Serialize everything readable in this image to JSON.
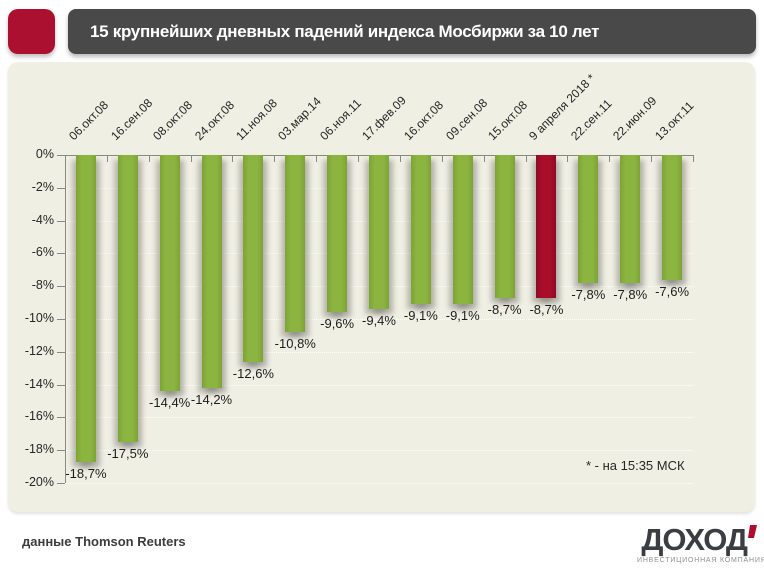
{
  "header": {
    "title": "15 крупнейших дневных падений индекса Мосбиржи за 10 лет",
    "accent_color": "#AC1030",
    "bar_color": "#494949"
  },
  "chart_data": {
    "type": "bar",
    "title": "15 крупнейших дневных падений индекса Мосбиржи за 10 лет",
    "categories": [
      "06.окт.08",
      "16.сен.08",
      "08.окт.08",
      "24.окт.08",
      "11.ноя.08",
      "03.мар.14",
      "06.ноя.11",
      "17.фев.09",
      "16.окт.08",
      "09.сен.08",
      "15.окт.08",
      "9 апреля 2018 *",
      "22.сен.11",
      "22.июн.09",
      "13.окт.11"
    ],
    "values": [
      -18.7,
      -17.5,
      -14.4,
      -14.2,
      -12.6,
      -10.8,
      -9.6,
      -9.4,
      -9.1,
      -9.1,
      -8.7,
      -8.7,
      -7.8,
      -7.8,
      -7.6
    ],
    "value_labels": [
      "-18,7%",
      "-17,5%",
      "-14,4%",
      "-14,2%",
      "-12,6%",
      "-10,8%",
      "-9,6%",
      "-9,4%",
      "-9,1%",
      "-9,1%",
      "-8,7%",
      "-8,7%",
      "-7,8%",
      "-7,8%",
      "-7,6%"
    ],
    "highlight_index": 11,
    "bar_color_hex": "#8CB441",
    "highlight_color_hex": "#A80D2A",
    "y_tick_labels": [
      "0%",
      "-2%",
      "-4%",
      "-6%",
      "-8%",
      "-10%",
      "-12%",
      "-14%",
      "-16%",
      "-18%",
      "-20%"
    ],
    "ylim": [
      -20,
      0
    ],
    "grid": "dotted horizontal every 2%",
    "legend": "none",
    "footnote": "* - на 15:35 МСК"
  },
  "footer": {
    "source": "данные Thomson Reuters",
    "logo": {
      "name": "ДОХОД",
      "tagline": "ИНВЕСТИЦИОННАЯ КОМПАНИЯ"
    }
  }
}
